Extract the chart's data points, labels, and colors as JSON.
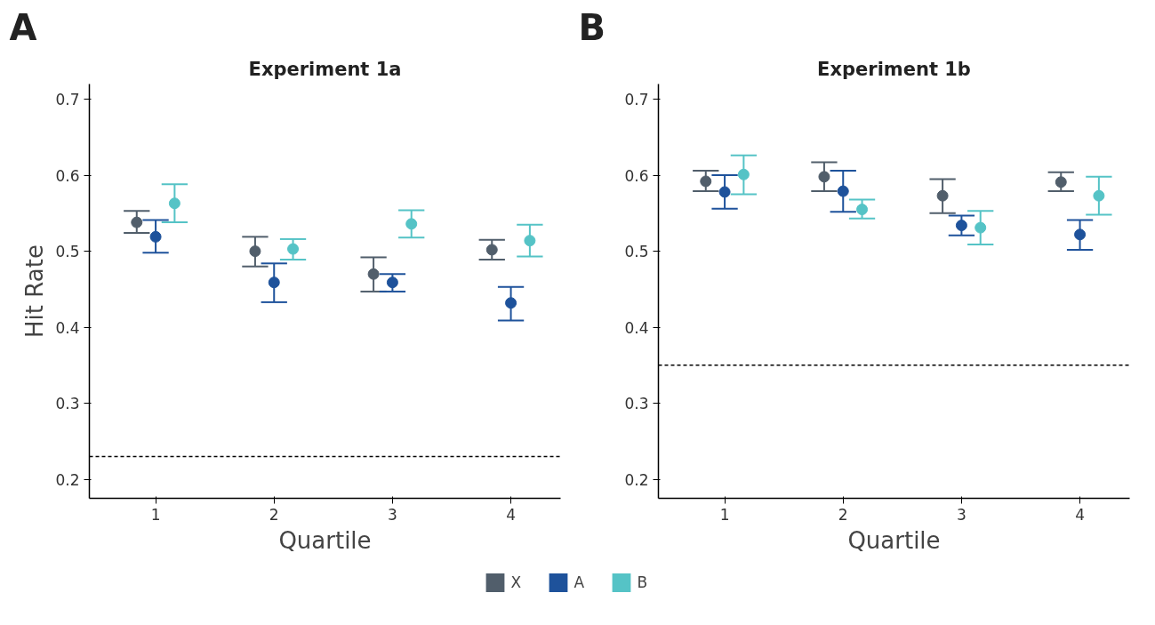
{
  "chart_data": [
    {
      "type": "scatter",
      "title": "Experiment 1a",
      "xlabel": "Quartile",
      "ylabel": "Hit Rate",
      "annotations": [
        "A"
      ],
      "categories": [
        "1",
        "2",
        "3",
        "4"
      ],
      "ylim": [
        0.175,
        0.72
      ],
      "yticks": [
        0.2,
        0.3,
        0.4,
        0.5,
        0.6,
        0.7
      ],
      "grid": false,
      "legend": "bottom",
      "marker": "circle",
      "ref_lines": [
        {
          "axis": "y",
          "value": 0.23,
          "label": null,
          "color": "#000000",
          "line_style": "dashed"
        }
      ],
      "series": [
        {
          "name": "X",
          "color": "#515e6b",
          "values": [
            0.538,
            0.5,
            0.47,
            0.502
          ],
          "errors": [
            [
              0.524,
              0.553
            ],
            [
              0.48,
              0.519
            ],
            [
              0.447,
              0.492
            ],
            [
              0.489,
              0.515
            ]
          ]
        },
        {
          "name": "A",
          "color": "#1e529b",
          "values": [
            0.519,
            0.459,
            0.459,
            0.432
          ],
          "errors": [
            [
              0.498,
              0.541
            ],
            [
              0.433,
              0.484
            ],
            [
              0.447,
              0.47
            ],
            [
              0.409,
              0.453
            ]
          ]
        },
        {
          "name": "B",
          "color": "#55c3c6",
          "values": [
            0.563,
            0.503,
            0.536,
            0.514
          ],
          "errors": [
            [
              0.538,
              0.588
            ],
            [
              0.489,
              0.516
            ],
            [
              0.518,
              0.554
            ],
            [
              0.493,
              0.535
            ]
          ]
        }
      ]
    },
    {
      "type": "scatter",
      "title": "Experiment 1b",
      "xlabel": "Quartile",
      "annotations": [
        "B"
      ],
      "categories": [
        "1",
        "2",
        "3",
        "4"
      ],
      "ylim": [
        0.175,
        0.72
      ],
      "yticks": [
        0.2,
        0.3,
        0.4,
        0.5,
        0.6,
        0.7
      ],
      "grid": false,
      "marker": "circle",
      "ref_lines": [
        {
          "axis": "y",
          "value": 0.35,
          "label": null,
          "color": "#000000",
          "line_style": "dashed"
        }
      ],
      "series": [
        {
          "color": "#515e6b",
          "values": [
            0.592,
            0.598,
            0.573,
            0.591
          ],
          "errors": [
            [
              0.579,
              0.606
            ],
            [
              0.579,
              0.617
            ],
            [
              0.55,
              0.595
            ],
            [
              0.579,
              0.604
            ]
          ]
        },
        {
          "color": "#1e529b",
          "values": [
            0.578,
            0.579,
            0.534,
            0.522
          ],
          "errors": [
            [
              0.556,
              0.6
            ],
            [
              0.552,
              0.606
            ],
            [
              0.521,
              0.547
            ],
            [
              0.502,
              0.541
            ]
          ]
        },
        {
          "color": "#55c3c6",
          "values": [
            0.601,
            0.555,
            0.531,
            0.573
          ],
          "errors": [
            [
              0.575,
              0.626
            ],
            [
              0.543,
              0.568
            ],
            [
              0.509,
              0.553
            ],
            [
              0.548,
              0.598
            ]
          ]
        }
      ]
    }
  ]
}
